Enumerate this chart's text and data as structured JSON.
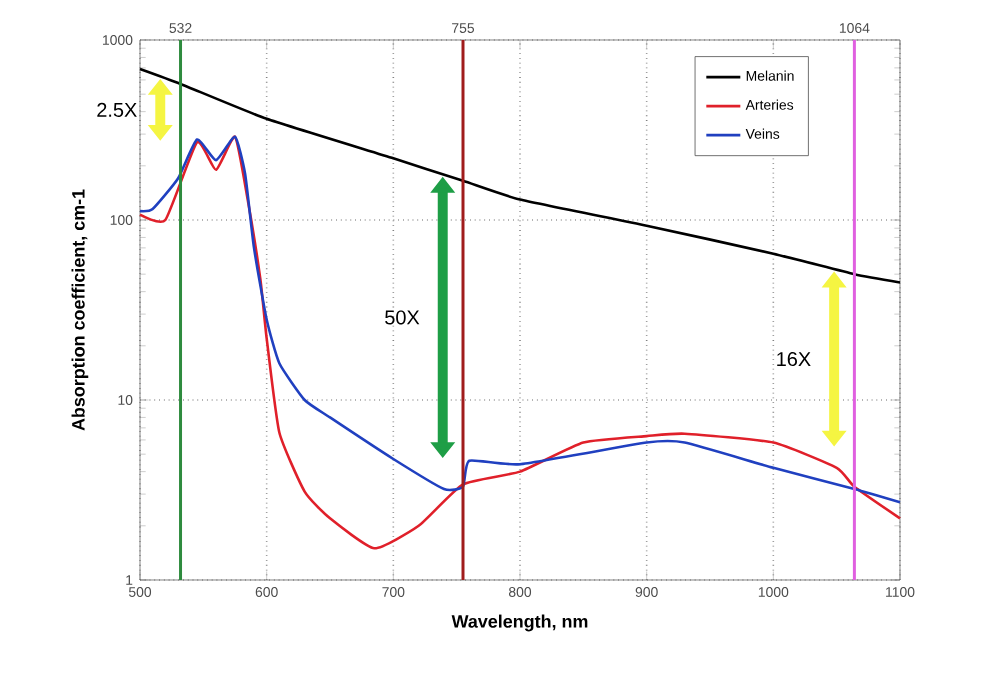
{
  "chart_data": {
    "type": "line",
    "xlabel": "Wavelength, nm",
    "ylabel": "Absorption coefficient, cm-1",
    "xlim": [
      500,
      1100
    ],
    "xticks": [
      500,
      600,
      700,
      800,
      900,
      1000,
      1100
    ],
    "ylim": [
      1,
      1000
    ],
    "yticks": [
      1,
      10,
      100,
      1000
    ],
    "log": "y",
    "grid": true,
    "legend": "top right",
    "series": [
      {
        "name": "Melanin",
        "color": "#000000",
        "x": [
          500,
          532,
          600,
          700,
          755,
          800,
          900,
          1000,
          1064,
          1100
        ],
        "values": [
          690,
          570,
          365,
          220,
          165,
          130,
          93,
          65,
          50,
          45
        ]
      },
      {
        "name": "Arteries",
        "color": "#e0202a",
        "x": [
          500,
          520,
          545,
          560,
          575,
          585,
          595,
          600,
          610,
          630,
          650,
          685,
          720,
          755,
          800,
          850,
          900,
          930,
          1000,
          1050,
          1064,
          1100
        ],
        "values": [
          107,
          100,
          270,
          190,
          290,
          130,
          47,
          22,
          6.6,
          3.1,
          2.2,
          1.5,
          2.0,
          3.4,
          4.0,
          5.8,
          6.3,
          6.5,
          5.8,
          4.2,
          3.3,
          2.2
        ]
      },
      {
        "name": "Veins",
        "color": "#2040c0",
        "x": [
          500,
          510,
          530,
          545,
          560,
          575,
          583,
          590,
          600,
          610,
          630,
          650,
          700,
          740,
          755,
          760,
          800,
          900,
          930,
          1000,
          1064,
          1100
        ],
        "values": [
          112,
          115,
          170,
          280,
          215,
          290,
          180,
          70,
          28,
          16,
          10,
          8,
          4.7,
          3.2,
          3.3,
          4.6,
          4.4,
          5.8,
          5.8,
          4.2,
          3.2,
          2.7
        ]
      }
    ],
    "ref_lines": [
      {
        "axis": "x",
        "value": 532,
        "label": "532",
        "color": "#2e8b3e"
      },
      {
        "axis": "x",
        "value": 755,
        "label": "755",
        "color": "#a01c1c"
      },
      {
        "axis": "x",
        "value": 1064,
        "label": "1064",
        "color": "#e060e0"
      }
    ],
    "annotations": [
      "2.5X",
      "50X",
      "16X"
    ]
  }
}
